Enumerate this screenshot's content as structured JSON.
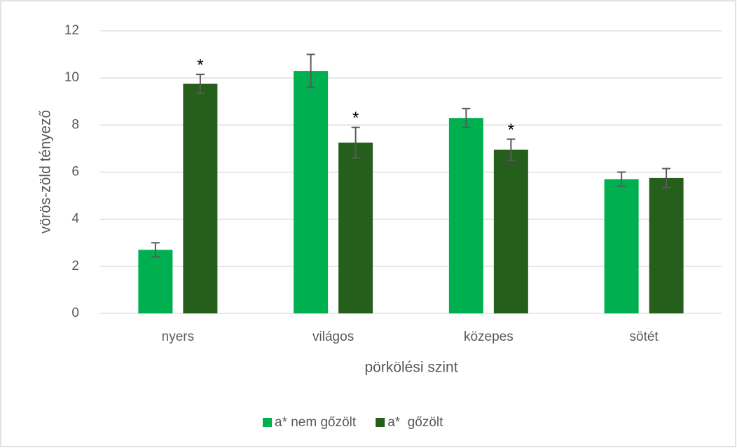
{
  "chart_data": {
    "type": "bar",
    "categories": [
      "nyers",
      "világos",
      "közepes",
      "sötét"
    ],
    "x_label": "pörkölési szint",
    "y_label": "vörös-zöld tényező",
    "series": [
      {
        "name": "a* nem gőzölt",
        "color": "#00b050",
        "values": [
          2.7,
          10.3,
          8.3,
          5.7
        ],
        "errors": [
          0.3,
          0.7,
          0.4,
          0.3
        ]
      },
      {
        "name": "a*  gőzölt",
        "color": "#265f1c",
        "values": [
          9.75,
          7.25,
          6.95,
          5.75
        ],
        "errors": [
          0.4,
          0.65,
          0.45,
          0.4
        ],
        "labels": [
          "*",
          "*",
          "*",
          null
        ]
      }
    ],
    "ylim": [
      0,
      12
    ],
    "yticks": [
      0,
      2,
      4,
      6,
      8,
      10,
      12
    ],
    "grid": true,
    "legend": "bottom"
  }
}
